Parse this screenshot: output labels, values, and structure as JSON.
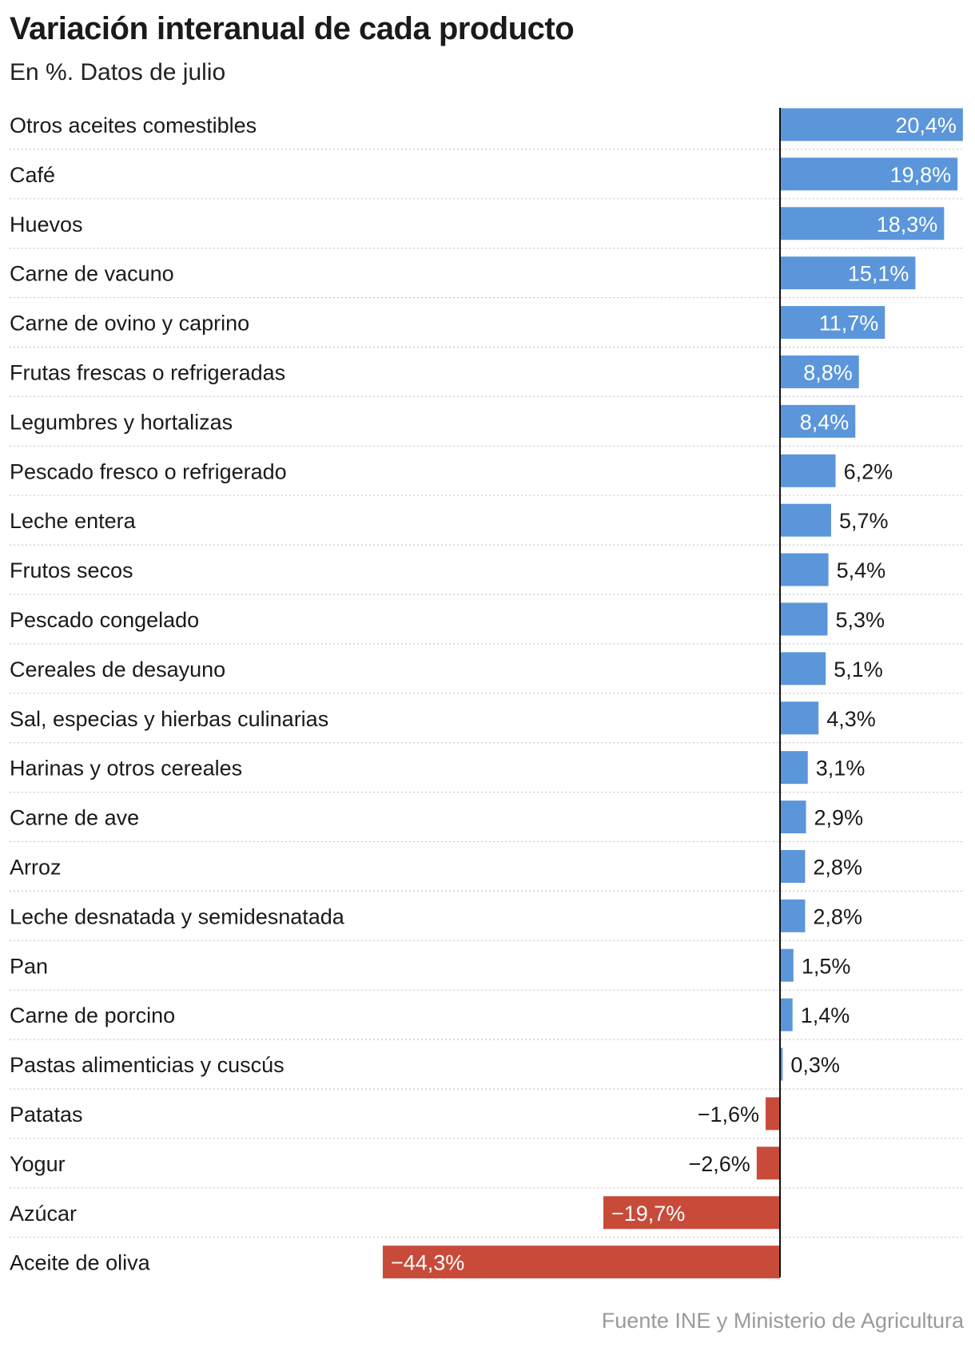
{
  "chart_data": {
    "type": "bar",
    "orientation": "horizontal",
    "title": "Variación interanual de cada producto",
    "subtitle": "En %. Datos de julio",
    "unit": "%",
    "categories": [
      "Otros aceites comestibles",
      "Café",
      "Huevos",
      "Carne de vacuno",
      "Carne de ovino y caprino",
      "Frutas frescas o refrigeradas",
      "Legumbres y hortalizas",
      "Pescado fresco o refrigerado",
      "Leche entera",
      "Frutos secos",
      "Pescado congelado",
      "Cereales de desayuno",
      "Sal, especias y hierbas culinarias",
      "Harinas y otros cereales",
      "Carne de ave",
      "Arroz",
      "Leche desnatada y semidesnatada",
      "Pan",
      "Carne de porcino",
      "Pastas alimenticias y cuscús",
      "Patatas",
      "Yogur",
      "Azúcar",
      "Aceite de oliva"
    ],
    "values": [
      20.4,
      19.8,
      18.3,
      15.1,
      11.7,
      8.8,
      8.4,
      6.2,
      5.7,
      5.4,
      5.3,
      5.1,
      4.3,
      3.1,
      2.9,
      2.8,
      2.8,
      1.5,
      1.4,
      0.3,
      -1.6,
      -2.6,
      -19.7,
      -44.3
    ],
    "value_labels": [
      "20,4%",
      "19,8%",
      "18,3%",
      "15,1%",
      "11,7%",
      "8,8%",
      "8,4%",
      "6,2%",
      "5,7%",
      "5,4%",
      "5,3%",
      "5,1%",
      "4,3%",
      "3,1%",
      "2,9%",
      "2,8%",
      "2,8%",
      "1,5%",
      "1,4%",
      "0,3%",
      "−1,6%",
      "−2,6%",
      "−19,7%",
      "−44,3%"
    ],
    "xlim": [
      -44.3,
      20.4
    ],
    "colors": {
      "positive": "#5b96db",
      "negative": "#c84b3a",
      "axis": "#111111",
      "divider": "#c8c8c8",
      "label_on_bar": "#ffffff",
      "label_off_bar": "#1a1a1a"
    }
  },
  "source": "Fuente INE y Ministerio de Agricultura"
}
